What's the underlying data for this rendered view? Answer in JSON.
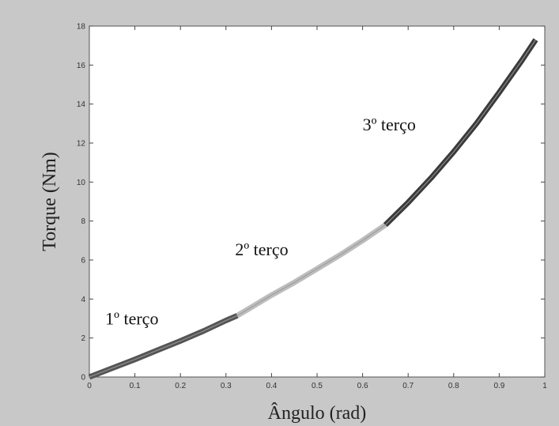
{
  "chart_data": {
    "type": "line",
    "xlabel": "Ângulo (rad)",
    "ylabel": "Torque (Nm)",
    "xlim": [
      0,
      1
    ],
    "ylim": [
      0,
      18
    ],
    "x_ticks": [
      "0",
      "0.1",
      "0.2",
      "0.3",
      "0.4",
      "0.5",
      "0.6",
      "0.7",
      "0.8",
      "0.9",
      "1"
    ],
    "y_ticks": [
      "0",
      "2",
      "4",
      "6",
      "8",
      "10",
      "12",
      "14",
      "16",
      "18"
    ],
    "grid": false,
    "series": [
      {
        "segment": "first-third",
        "color": "#555555",
        "x": [
          0.0,
          0.05,
          0.1,
          0.15,
          0.2,
          0.25,
          0.3,
          0.325
        ],
        "y": [
          0.0,
          0.45,
          0.9,
          1.38,
          1.85,
          2.35,
          2.9,
          3.15
        ]
      },
      {
        "segment": "second-third",
        "color": "#bdbdbd",
        "x": [
          0.325,
          0.35,
          0.4,
          0.45,
          0.5,
          0.55,
          0.6,
          0.65
        ],
        "y": [
          3.15,
          3.5,
          4.2,
          4.85,
          5.55,
          6.25,
          7.0,
          7.8
        ]
      },
      {
        "segment": "last-third",
        "color": "#3a3a3a",
        "x": [
          0.65,
          0.7,
          0.75,
          0.8,
          0.85,
          0.9,
          0.95,
          0.98
        ],
        "y": [
          7.8,
          8.95,
          10.2,
          11.55,
          13.0,
          14.6,
          16.25,
          17.3
        ]
      }
    ],
    "annotations": [
      {
        "text": "1º terço",
        "x": 0.035,
        "y": 2.7
      },
      {
        "text": "2º terço",
        "x": 0.32,
        "y": 6.25
      },
      {
        "text": "3º terço",
        "x": 0.6,
        "y": 12.65
      }
    ],
    "colors": {
      "background": "#c8c8c8",
      "plot_area": "#ffffff",
      "axis": "#444444",
      "thin_reference": "#999999"
    }
  }
}
